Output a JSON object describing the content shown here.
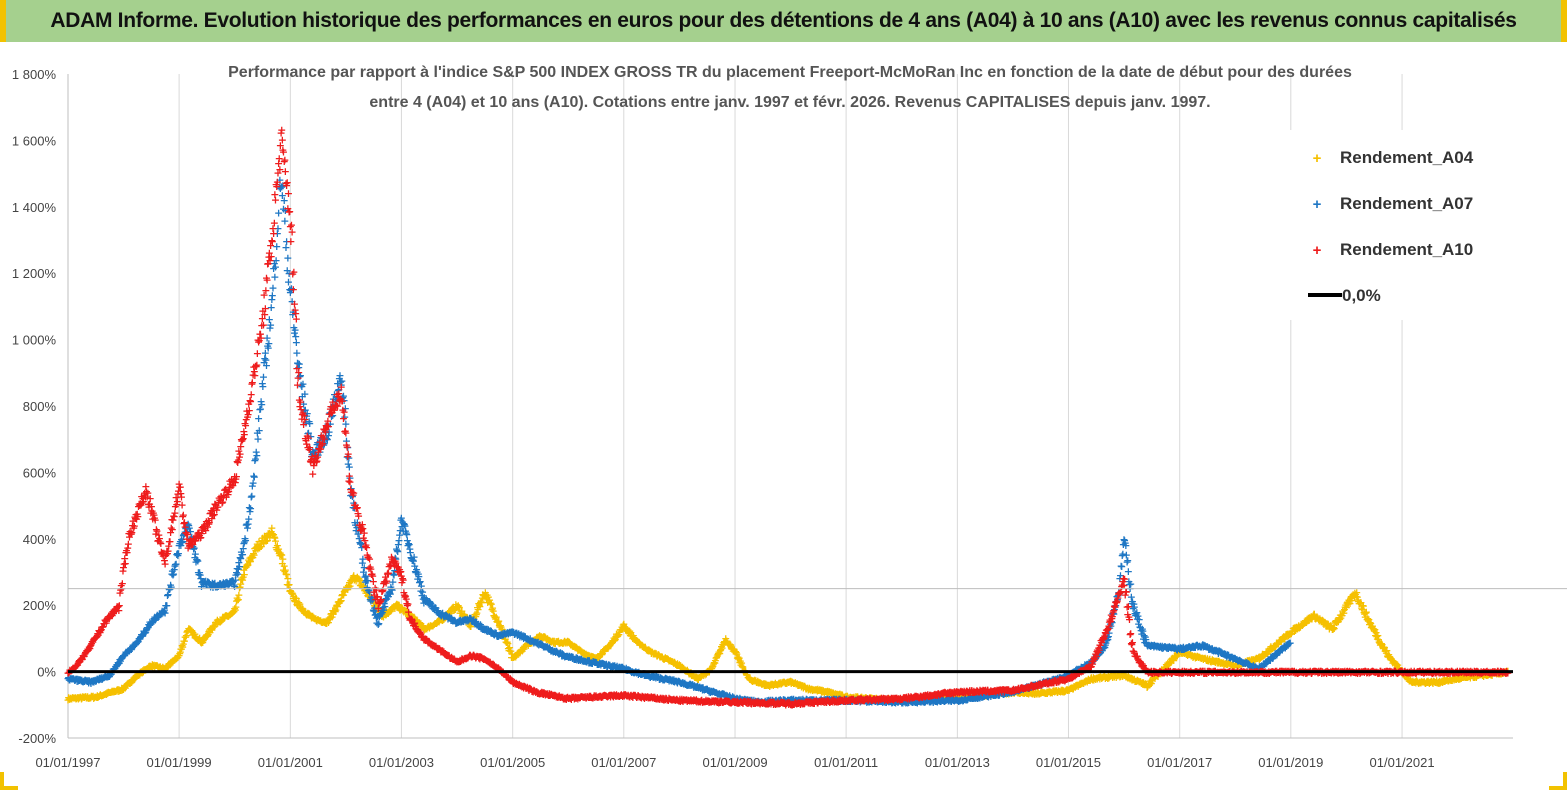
{
  "banner": {
    "title": "ADAM Informe. Evolution historique des performances en euros pour des détentions de 4 ans (A04) à 10 ans (A10) avec les revenus connus capitalisés"
  },
  "colors": {
    "banner_bg": "#a5d08e",
    "frame": "#f2c200",
    "A04": "#f5c000",
    "A07": "#1f77c4",
    "A10": "#ee1c1c",
    "zero": "#000000",
    "grid": "#d9d9d9"
  },
  "chart_data": {
    "type": "scatter",
    "title_line1": "Performance par rapport à l'indice S&P 500 INDEX GROSS TR  du placement Freeport-McMoRan Inc en fonction de la date de début pour des durées",
    "title_line2": "entre 4 (A04) et 10 ans (A10).  Cotations entre janv. 1997 et févr. 2026. Revenus  CAPITALISES depuis janv. 1997.",
    "x_range": [
      "1997-01-01",
      "2022-12-31"
    ],
    "x_ticks": [
      "01/01/1997",
      "01/01/1999",
      "01/01/2001",
      "01/01/2003",
      "01/01/2005",
      "01/01/2007",
      "01/01/2009",
      "01/01/2011",
      "01/01/2013",
      "01/01/2015",
      "01/01/2017",
      "01/01/2019",
      "01/01/2021"
    ],
    "y_range": [
      -200,
      1800
    ],
    "y_ticks": [
      -200,
      0,
      200,
      400,
      600,
      800,
      1000,
      1200,
      1400,
      1600,
      1800
    ],
    "y_tick_labels": [
      "-200%",
      "0%",
      "200%",
      "400%",
      "600%",
      "800%",
      "1 000%",
      "1 200%",
      "1 400%",
      "1 600%",
      "1 800%"
    ],
    "grid": "vertical",
    "legend_position": "top-right",
    "legend": {
      "a04": "Rendement_A04",
      "a07": "Rendement_A07",
      "a10": "Rendement_A10",
      "zero": "0,0%"
    },
    "series": [
      {
        "name": "Rendement_A04",
        "color": "#f5c000",
        "marker": "+",
        "points": [
          [
            "1997-01-01",
            -80
          ],
          [
            "1997-07-01",
            -75
          ],
          [
            "1998-01-01",
            -50
          ],
          [
            "1998-04-01",
            -10
          ],
          [
            "1998-07-01",
            20
          ],
          [
            "1998-10-01",
            10
          ],
          [
            "1999-01-01",
            50
          ],
          [
            "1999-03-01",
            130
          ],
          [
            "1999-06-01",
            90
          ],
          [
            "1999-09-01",
            150
          ],
          [
            "2000-01-01",
            180
          ],
          [
            "2000-03-01",
            300
          ],
          [
            "2000-06-01",
            380
          ],
          [
            "2000-09-01",
            420
          ],
          [
            "2000-11-01",
            350
          ],
          [
            "2001-01-01",
            240
          ],
          [
            "2001-03-01",
            200
          ],
          [
            "2001-06-01",
            160
          ],
          [
            "2001-09-01",
            150
          ],
          [
            "2001-12-01",
            220
          ],
          [
            "2002-03-01",
            290
          ],
          [
            "2002-06-01",
            230
          ],
          [
            "2002-09-01",
            170
          ],
          [
            "2002-12-01",
            200
          ],
          [
            "2003-03-01",
            170
          ],
          [
            "2003-06-01",
            130
          ],
          [
            "2003-09-01",
            150
          ],
          [
            "2004-01-01",
            200
          ],
          [
            "2004-04-01",
            140
          ],
          [
            "2004-07-01",
            240
          ],
          [
            "2004-10-01",
            150
          ],
          [
            "2005-01-01",
            40
          ],
          [
            "2005-04-01",
            80
          ],
          [
            "2005-07-01",
            110
          ],
          [
            "2005-10-01",
            90
          ],
          [
            "2006-01-01",
            90
          ],
          [
            "2006-04-01",
            60
          ],
          [
            "2006-07-01",
            40
          ],
          [
            "2006-10-01",
            80
          ],
          [
            "2007-01-01",
            140
          ],
          [
            "2007-04-01",
            90
          ],
          [
            "2007-07-01",
            60
          ],
          [
            "2008-01-01",
            20
          ],
          [
            "2008-05-01",
            -20
          ],
          [
            "2008-08-01",
            10
          ],
          [
            "2008-11-01",
            100
          ],
          [
            "2009-01-01",
            60
          ],
          [
            "2009-04-01",
            -20
          ],
          [
            "2009-08-01",
            -40
          ],
          [
            "2010-01-01",
            -30
          ],
          [
            "2010-05-01",
            -50
          ],
          [
            "2010-09-01",
            -60
          ],
          [
            "2011-01-01",
            -75
          ],
          [
            "2011-06-01",
            -80
          ],
          [
            "2012-01-01",
            -85
          ],
          [
            "2012-06-01",
            -80
          ],
          [
            "2013-01-01",
            -75
          ],
          [
            "2013-06-01",
            -70
          ],
          [
            "2014-01-01",
            -60
          ],
          [
            "2014-06-01",
            -65
          ],
          [
            "2015-01-01",
            -55
          ],
          [
            "2015-06-01",
            -20
          ],
          [
            "2016-01-01",
            -10
          ],
          [
            "2016-06-01",
            -40
          ],
          [
            "2017-01-01",
            60
          ],
          [
            "2017-06-01",
            40
          ],
          [
            "2018-01-01",
            20
          ],
          [
            "2018-06-01",
            40
          ],
          [
            "2019-01-01",
            120
          ],
          [
            "2019-06-01",
            170
          ],
          [
            "2019-10-01",
            130
          ],
          [
            "2020-03-01",
            240
          ],
          [
            "2020-06-01",
            150
          ],
          [
            "2020-10-01",
            50
          ],
          [
            "2021-03-01",
            -30
          ],
          [
            "2021-09-01",
            -30
          ],
          [
            "2022-01-01",
            -20
          ],
          [
            "2022-06-01",
            -10
          ],
          [
            "2022-12-01",
            0
          ]
        ]
      },
      {
        "name": "Rendement_A07",
        "color": "#1f77c4",
        "marker": "+",
        "points": [
          [
            "1997-01-01",
            -20
          ],
          [
            "1997-06-01",
            -30
          ],
          [
            "1997-10-01",
            -10
          ],
          [
            "1998-01-01",
            50
          ],
          [
            "1998-04-01",
            90
          ],
          [
            "1998-07-01",
            150
          ],
          [
            "1998-10-01",
            190
          ],
          [
            "1999-01-01",
            380
          ],
          [
            "1999-03-01",
            440
          ],
          [
            "1999-06-01",
            270
          ],
          [
            "1999-09-01",
            260
          ],
          [
            "2000-01-01",
            270
          ],
          [
            "2000-03-01",
            380
          ],
          [
            "2000-05-01",
            560
          ],
          [
            "2000-07-01",
            850
          ],
          [
            "2000-09-01",
            1100
          ],
          [
            "2000-11-01",
            1500
          ],
          [
            "2001-01-01",
            1150
          ],
          [
            "2001-03-01",
            900
          ],
          [
            "2001-06-01",
            650
          ],
          [
            "2001-09-01",
            720
          ],
          [
            "2001-12-01",
            900
          ],
          [
            "2002-02-01",
            560
          ],
          [
            "2002-05-01",
            300
          ],
          [
            "2002-08-01",
            150
          ],
          [
            "2002-11-01",
            260
          ],
          [
            "2003-01-01",
            460
          ],
          [
            "2003-03-01",
            370
          ],
          [
            "2003-06-01",
            220
          ],
          [
            "2003-09-01",
            180
          ],
          [
            "2004-01-01",
            150
          ],
          [
            "2004-04-01",
            160
          ],
          [
            "2004-07-01",
            130
          ],
          [
            "2004-10-01",
            110
          ],
          [
            "2005-01-01",
            120
          ],
          [
            "2005-06-01",
            90
          ],
          [
            "2005-12-01",
            50
          ],
          [
            "2006-06-01",
            30
          ],
          [
            "2007-01-01",
            10
          ],
          [
            "2007-06-01",
            -10
          ],
          [
            "2008-01-01",
            -30
          ],
          [
            "2008-06-01",
            -50
          ],
          [
            "2009-01-01",
            -80
          ],
          [
            "2009-06-01",
            -90
          ],
          [
            "2010-01-01",
            -85
          ],
          [
            "2011-01-01",
            -85
          ],
          [
            "2012-01-01",
            -90
          ],
          [
            "2013-01-01",
            -85
          ],
          [
            "2014-01-01",
            -60
          ],
          [
            "2014-06-01",
            -40
          ],
          [
            "2015-01-01",
            -10
          ],
          [
            "2015-06-01",
            30
          ],
          [
            "2015-09-01",
            80
          ],
          [
            "2015-12-01",
            250
          ],
          [
            "2016-01-01",
            400
          ],
          [
            "2016-03-01",
            200
          ],
          [
            "2016-06-01",
            80
          ],
          [
            "2017-01-01",
            70
          ],
          [
            "2017-06-01",
            80
          ],
          [
            "2018-01-01",
            40
          ],
          [
            "2018-06-01",
            10
          ],
          [
            "2019-01-01",
            90
          ]
        ]
      },
      {
        "name": "Rendement_A10",
        "color": "#ee1c1c",
        "marker": "+",
        "points": [
          [
            "1997-01-01",
            0
          ],
          [
            "1997-03-01",
            20
          ],
          [
            "1997-06-01",
            80
          ],
          [
            "1997-09-01",
            150
          ],
          [
            "1997-12-01",
            200
          ],
          [
            "1998-02-01",
            400
          ],
          [
            "1998-04-01",
            480
          ],
          [
            "1998-06-01",
            550
          ],
          [
            "1998-08-01",
            430
          ],
          [
            "1998-10-01",
            330
          ],
          [
            "1999-01-01",
            560
          ],
          [
            "1999-03-01",
            380
          ],
          [
            "1999-06-01",
            420
          ],
          [
            "1999-09-01",
            500
          ],
          [
            "2000-01-01",
            580
          ],
          [
            "2000-03-01",
            720
          ],
          [
            "2000-05-01",
            880
          ],
          [
            "2000-07-01",
            1050
          ],
          [
            "2000-09-01",
            1300
          ],
          [
            "2000-11-01",
            1600
          ],
          [
            "2001-01-01",
            1380
          ],
          [
            "2001-03-01",
            820
          ],
          [
            "2001-06-01",
            620
          ],
          [
            "2001-09-01",
            750
          ],
          [
            "2001-12-01",
            850
          ],
          [
            "2002-02-01",
            560
          ],
          [
            "2002-05-01",
            400
          ],
          [
            "2002-08-01",
            200
          ],
          [
            "2002-11-01",
            340
          ],
          [
            "2003-01-01",
            290
          ],
          [
            "2003-03-01",
            160
          ],
          [
            "2003-06-01",
            100
          ],
          [
            "2003-09-01",
            70
          ],
          [
            "2004-01-01",
            30
          ],
          [
            "2004-04-01",
            50
          ],
          [
            "2004-07-01",
            40
          ],
          [
            "2004-10-01",
            10
          ],
          [
            "2005-01-01",
            -30
          ],
          [
            "2005-06-01",
            -60
          ],
          [
            "2006-01-01",
            -80
          ],
          [
            "2006-06-01",
            -75
          ],
          [
            "2007-01-01",
            -70
          ],
          [
            "2008-01-01",
            -85
          ],
          [
            "2009-01-01",
            -90
          ],
          [
            "2010-01-01",
            -95
          ],
          [
            "2011-01-01",
            -85
          ],
          [
            "2012-01-01",
            -80
          ],
          [
            "2013-01-01",
            -60
          ],
          [
            "2014-01-01",
            -55
          ],
          [
            "2015-01-01",
            -20
          ],
          [
            "2015-06-01",
            20
          ],
          [
            "2015-10-01",
            150
          ],
          [
            "2016-01-01",
            280
          ],
          [
            "2016-03-01",
            60
          ],
          [
            "2016-06-01",
            0
          ],
          [
            "2022-12-01",
            0
          ]
        ]
      }
    ]
  }
}
